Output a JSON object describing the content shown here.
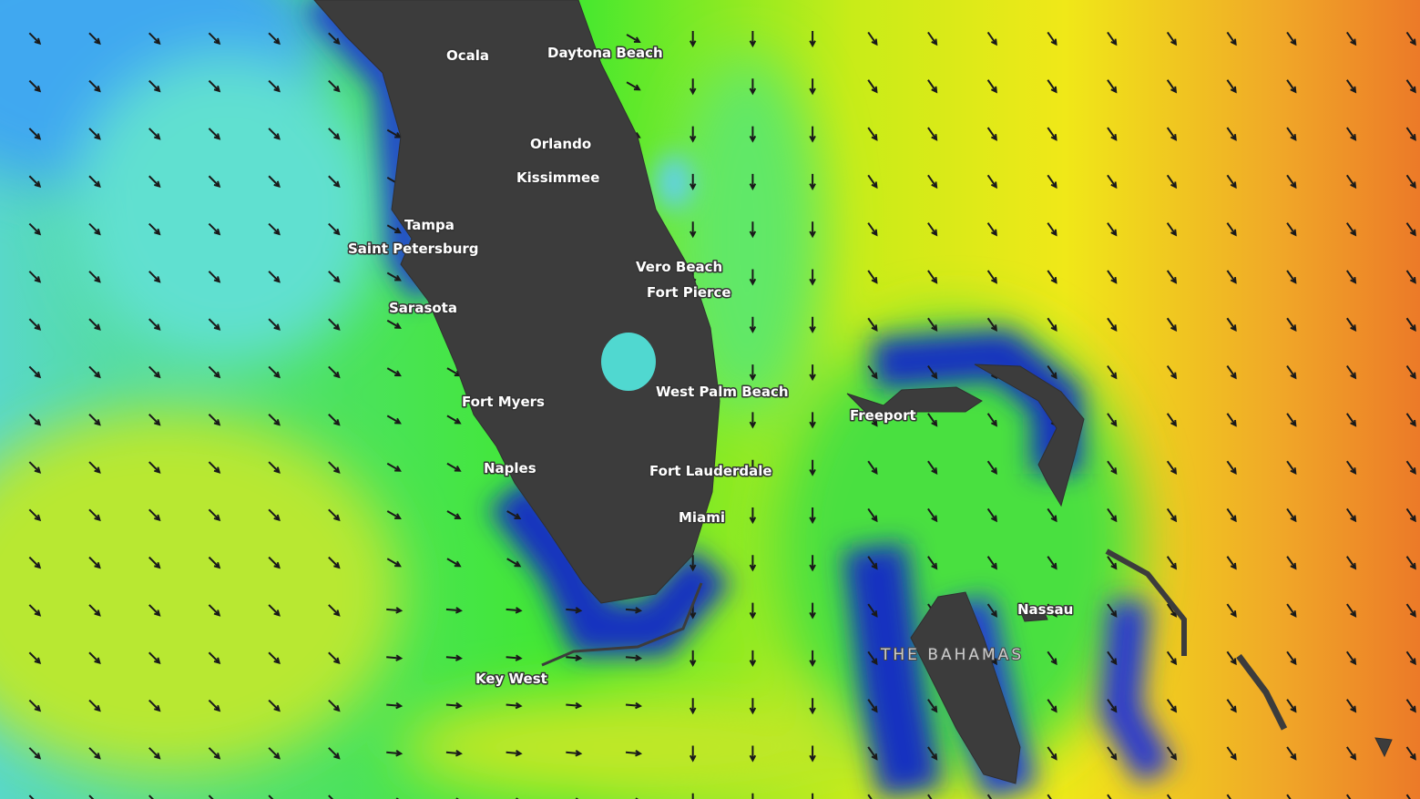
{
  "map": {
    "labels": [
      "Ocala",
      "Daytona Beach",
      "Orlando",
      "Kissimmee",
      "Tampa",
      "Saint Petersburg",
      "Vero Beach",
      "Fort Pierce",
      "Sarasota",
      "West Palm Beach",
      "Fort Myers",
      "Freeport",
      "Naples",
      "Fort Lauderdale",
      "Miami",
      "Nassau",
      "THE BAHAMAS",
      "Key West"
    ]
  }
}
